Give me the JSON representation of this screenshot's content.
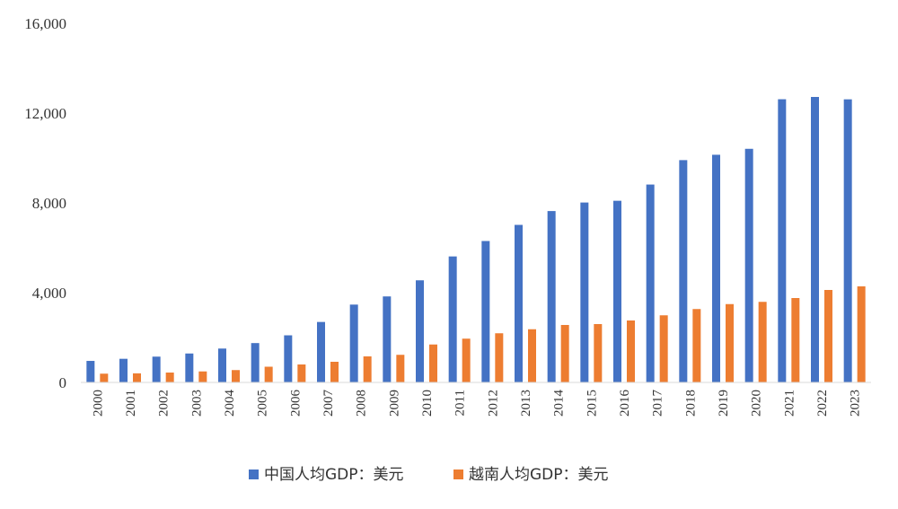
{
  "chart_data": {
    "type": "bar",
    "categories": [
      "2000",
      "2001",
      "2002",
      "2003",
      "2004",
      "2005",
      "2006",
      "2007",
      "2008",
      "2009",
      "2010",
      "2011",
      "2012",
      "2013",
      "2014",
      "2015",
      "2016",
      "2017",
      "2018",
      "2019",
      "2020",
      "2021",
      "2022",
      "2023"
    ],
    "series": [
      {
        "name": "中国人均GDP：美元",
        "color": "#4472c4",
        "values": [
          959,
          1053,
          1149,
          1289,
          1509,
          1753,
          2099,
          2694,
          3468,
          3832,
          4550,
          5614,
          6301,
          7020,
          7636,
          8016,
          8094,
          8817,
          9905,
          10144,
          10409,
          12618,
          12720,
          12614
        ]
      },
      {
        "name": "越南人均GDP：美元",
        "color": "#ed7d31",
        "values": [
          390,
          405,
          440,
          490,
          550,
          700,
          800,
          920,
          1160,
          1230,
          1690,
          1950,
          2190,
          2370,
          2560,
          2600,
          2760,
          2990,
          3270,
          3490,
          3590,
          3760,
          4120,
          4280
        ]
      }
    ],
    "yticks": [
      "0",
      "4,000",
      "8,000",
      "12,000",
      "16,000"
    ],
    "ylim": [
      0,
      16000
    ],
    "grid": false,
    "legend": "bottom-center",
    "title": "",
    "xlabel": "",
    "ylabel": ""
  }
}
